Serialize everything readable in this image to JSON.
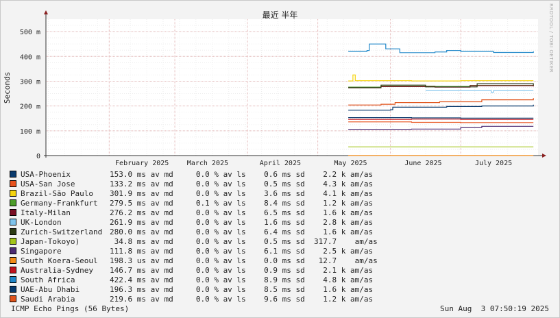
{
  "chart_data": {
    "type": "line",
    "title": "最近 半年",
    "ylabel": "Seconds",
    "xlabel": "",
    "ylim": [
      0,
      0.55
    ],
    "grid": true,
    "y_ticks": [
      {
        "value": 0,
        "label": "0"
      },
      {
        "value": 0.1,
        "label": "100 m"
      },
      {
        "value": 0.2,
        "label": "200 m"
      },
      {
        "value": 0.3,
        "label": "300 m"
      },
      {
        "value": 0.4,
        "label": "400 m"
      },
      {
        "value": 0.5,
        "label": "500 m"
      }
    ],
    "x_ticks": [
      {
        "date": "2025-02-01",
        "label": "February 2025"
      },
      {
        "date": "2025-03-01",
        "label": "March 2025"
      },
      {
        "date": "2025-04-01",
        "label": "April 2025"
      },
      {
        "date": "2025-05-01",
        "label": "May 2025"
      },
      {
        "date": "2025-06-01",
        "label": "June 2025"
      },
      {
        "date": "2025-07-01",
        "label": "July 2025"
      }
    ],
    "xlim": [
      "2025-01-05",
      "2025-08-03"
    ],
    "series": [
      {
        "name": "USA-Phoenix",
        "color": "#0b3c6e",
        "stats": "153.0 ms av md     0.0 % av ls    0.6 ms sd    2.2 k am/as",
        "points": [
          [
            "2025-05-14",
            0.153
          ],
          [
            "2025-06-10",
            0.152
          ],
          [
            "2025-07-01",
            0.151
          ],
          [
            "2025-08-01",
            0.151
          ]
        ]
      },
      {
        "name": "USA-San Jose",
        "color": "#e8531f",
        "stats": "133.2 ms av md     0.0 % av ls    0.5 ms sd    4.3 k am/as",
        "points": [
          [
            "2025-05-14",
            0.136
          ],
          [
            "2025-06-10",
            0.134
          ],
          [
            "2025-07-01",
            0.133
          ],
          [
            "2025-08-01",
            0.133
          ]
        ]
      },
      {
        "name": "Brazil-São Paulo",
        "color": "#f5d40f",
        "stats": "301.9 ms av md     0.0 % av ls    3.6 ms sd    4.1 k am/as",
        "points": [
          [
            "2025-05-14",
            0.301
          ],
          [
            "2025-05-16",
            0.325
          ],
          [
            "2025-05-17",
            0.302
          ],
          [
            "2025-06-10",
            0.301
          ],
          [
            "2025-07-01",
            0.302
          ],
          [
            "2025-08-01",
            0.302
          ]
        ]
      },
      {
        "name": "Germany-Frankfurt",
        "color": "#4d9d2a",
        "stats": "279.5 ms av md     0.1 % av ls    8.4 ms sd    1.2 k am/as",
        "points": [
          [
            "2025-05-14",
            0.276
          ],
          [
            "2025-05-28",
            0.28
          ],
          [
            "2025-06-20",
            0.279
          ],
          [
            "2025-07-05",
            0.283
          ],
          [
            "2025-08-01",
            0.281
          ]
        ]
      },
      {
        "name": "Italy-Milan",
        "color": "#7a0f23",
        "stats": "276.2 ms av md     0.0 % av ls    6.5 ms sd    1.6 k am/as",
        "points": [
          [
            "2025-05-14",
            0.273
          ],
          [
            "2025-05-28",
            0.278
          ],
          [
            "2025-06-20",
            0.276
          ],
          [
            "2025-07-05",
            0.282
          ],
          [
            "2025-08-01",
            0.279
          ]
        ]
      },
      {
        "name": "UK-London",
        "color": "#7fc3ec",
        "stats": "261.9 ms av md     0.0 % av ls    1.6 ms sd    2.8 k am/as",
        "points": [
          [
            "2025-06-16",
            0.262
          ],
          [
            "2025-07-12",
            0.262
          ],
          [
            "2025-07-14",
            0.255
          ],
          [
            "2025-07-15",
            0.262
          ],
          [
            "2025-08-01",
            0.262
          ]
        ]
      },
      {
        "name": "Zurich-Switzerland",
        "color": "#2c3b14",
        "stats": "280.0 ms av md     0.0 % av ls    6.4 ms sd    1.6 k am/as",
        "points": [
          [
            "2025-05-14",
            0.274
          ],
          [
            "2025-05-28",
            0.284
          ],
          [
            "2025-06-16",
            0.277
          ],
          [
            "2025-07-08",
            0.29
          ],
          [
            "2025-08-01",
            0.283
          ]
        ]
      },
      {
        "name": "Japan-Tokoyo)",
        "color": "#a3c51a",
        "stats": " 34.8 ms av md     0.0 % av ls    0.5 ms sd  317.7    am/as",
        "points": [
          [
            "2025-05-14",
            0.035
          ],
          [
            "2025-06-20",
            0.035
          ],
          [
            "2025-08-01",
            0.035
          ]
        ]
      },
      {
        "name": "Singapore",
        "color": "#4b2a72",
        "stats": "111.8 ms av md     0.0 % av ls    6.1 ms sd    2.5 k am/as",
        "points": [
          [
            "2025-05-14",
            0.106
          ],
          [
            "2025-06-10",
            0.107
          ],
          [
            "2025-07-01",
            0.113
          ],
          [
            "2025-07-10",
            0.118
          ],
          [
            "2025-08-01",
            0.118
          ]
        ]
      },
      {
        "name": "South Koera-Seoul",
        "color": "#f28a16",
        "stats": "198.3 us av md     0.0 % av ls    0.0 ms sd   12.7    am/as",
        "points": [
          [
            "2025-05-14",
            0.0002
          ],
          [
            "2025-08-01",
            0.0002
          ]
        ]
      },
      {
        "name": "Australia-Sydney",
        "color": "#c1121c",
        "stats": "146.7 ms av md     0.0 % av ls    0.9 ms sd    2.1 k am/as",
        "points": [
          [
            "2025-05-14",
            0.146
          ],
          [
            "2025-06-10",
            0.147
          ],
          [
            "2025-07-01",
            0.146
          ],
          [
            "2025-08-01",
            0.146
          ]
        ]
      },
      {
        "name": "South Africa",
        "color": "#1f86c8",
        "stats": "422.4 ms av md     0.0 % av ls    8.9 ms sd    4.8 k am/as",
        "points": [
          [
            "2025-05-14",
            0.42
          ],
          [
            "2025-05-22",
            0.424
          ],
          [
            "2025-05-23",
            0.45
          ],
          [
            "2025-05-30",
            0.43
          ],
          [
            "2025-06-05",
            0.415
          ],
          [
            "2025-06-20",
            0.418
          ],
          [
            "2025-06-25",
            0.424
          ],
          [
            "2025-07-01",
            0.42
          ],
          [
            "2025-07-15",
            0.416
          ],
          [
            "2025-08-01",
            0.42
          ]
        ]
      },
      {
        "name": "UAE-Abu Dhabi",
        "color": "#083a6d",
        "stats": "196.3 ms av md     0.0 % av ls    8.5 ms sd    1.6 k am/as",
        "points": [
          [
            "2025-05-14",
            0.183
          ],
          [
            "2025-06-01",
            0.185
          ],
          [
            "2025-06-02",
            0.195
          ],
          [
            "2025-06-25",
            0.198
          ],
          [
            "2025-07-10",
            0.2
          ],
          [
            "2025-08-01",
            0.205
          ]
        ]
      },
      {
        "name": "Saudi Arabia",
        "color": "#e0541c",
        "stats": "219.6 ms av md     0.0 % av ls    9.6 ms sd    1.2 k am/as",
        "points": [
          [
            "2025-05-14",
            0.204
          ],
          [
            "2025-05-28",
            0.207
          ],
          [
            "2025-06-03",
            0.214
          ],
          [
            "2025-06-22",
            0.217
          ],
          [
            "2025-07-10",
            0.225
          ],
          [
            "2025-08-01",
            0.232
          ]
        ]
      }
    ]
  },
  "footer": {
    "left": "ICMP Echo Pings (56 Bytes)",
    "right": "Sun Aug  3 07:50:19 2025"
  },
  "side_label": "RRDTOOL / TOBI OETIKER",
  "colors": {
    "background": "#f3f3f3",
    "plot_bg": "#ffffff",
    "grid_major": "#e4b8b8",
    "grid_minor": "#eeeeee",
    "axis": "#333333",
    "arrow": "#8a1f1f"
  }
}
